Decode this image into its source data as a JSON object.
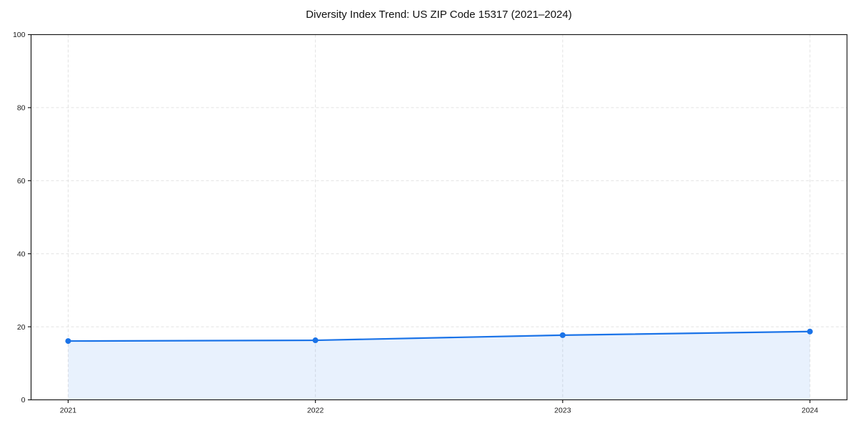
{
  "page": {
    "background": "#ffffff"
  },
  "chart_data": {
    "type": "line",
    "title": "Diversity Index Trend: US ZIP Code 15317 (2021–2024)",
    "categories": [
      "2021",
      "2022",
      "2023",
      "2024"
    ],
    "series": [
      {
        "name": "Diversity Index",
        "values": [
          16.1,
          16.3,
          17.7,
          18.7
        ]
      }
    ],
    "xlabel": "",
    "ylabel": "",
    "ylim": [
      0,
      100
    ],
    "yticks": [
      0,
      20,
      40,
      60,
      80,
      100
    ],
    "grid": true,
    "grid_style": "dashed",
    "legend_position": "none",
    "line_color": "#1a73e8",
    "area_fill": "rgba(26,115,232,0.10)",
    "grid_color": "#e2e2e2",
    "spine_color": "#1a1a1a",
    "tick_label_color": "#1a1a1a",
    "marker": "circle",
    "marker_size": 4
  }
}
